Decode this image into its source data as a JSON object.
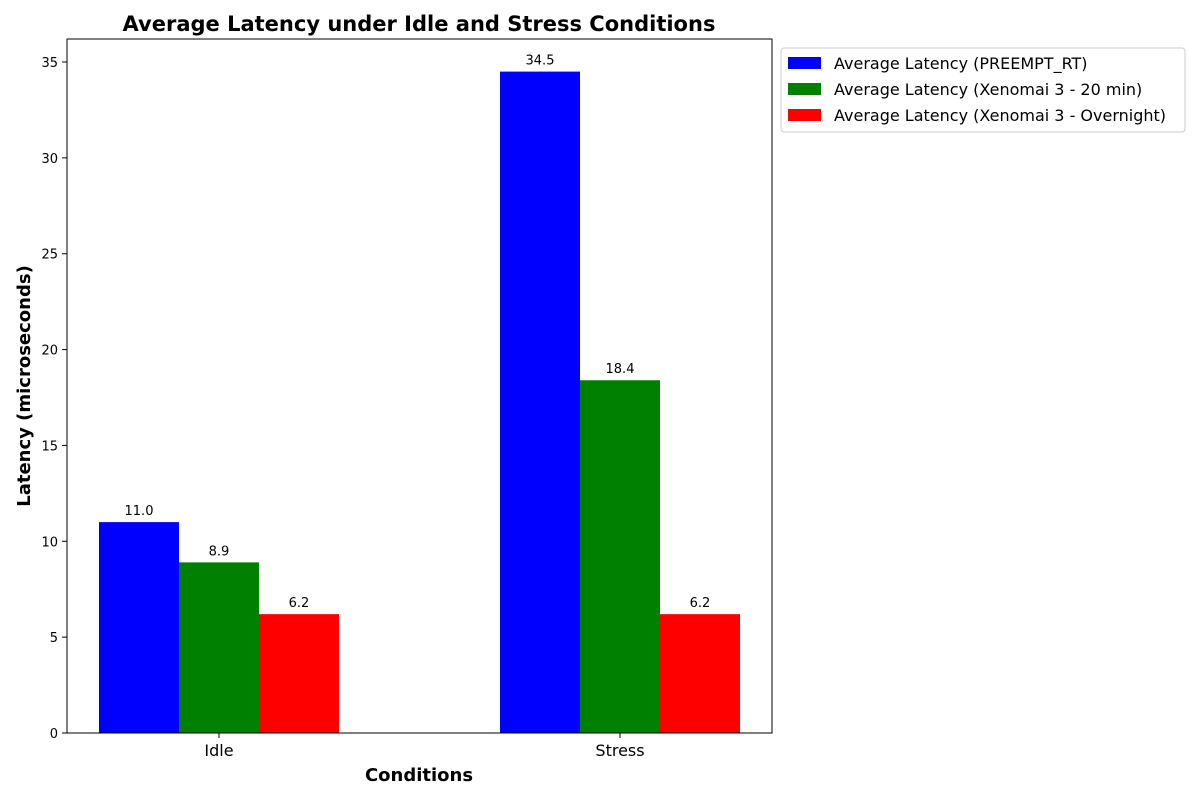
{
  "chart_data": {
    "type": "bar",
    "title": "Average Latency under Idle and Stress Conditions",
    "xlabel": "Conditions",
    "ylabel": "Latency (microseconds)",
    "categories": [
      "Idle",
      "Stress"
    ],
    "ylim": [
      0,
      36.2
    ],
    "yticks": [
      0,
      5,
      10,
      15,
      20,
      25,
      30,
      35
    ],
    "grid": false,
    "legend_position": "outside-top-right",
    "series": [
      {
        "name": "Average Latency (PREEMPT_RT)",
        "color": "#0000ff",
        "values": [
          11.0,
          34.5
        ],
        "labels": [
          "11.0",
          "34.5"
        ]
      },
      {
        "name": "Average Latency (Xenomai 3 - 20 min)",
        "color": "#008000",
        "values": [
          8.9,
          18.4
        ],
        "labels": [
          "8.9",
          "18.4"
        ]
      },
      {
        "name": "Average Latency (Xenomai 3 - Overnight)",
        "color": "#ff0000",
        "values": [
          6.2,
          6.2
        ],
        "labels": [
          "6.2",
          "6.2"
        ]
      }
    ]
  }
}
